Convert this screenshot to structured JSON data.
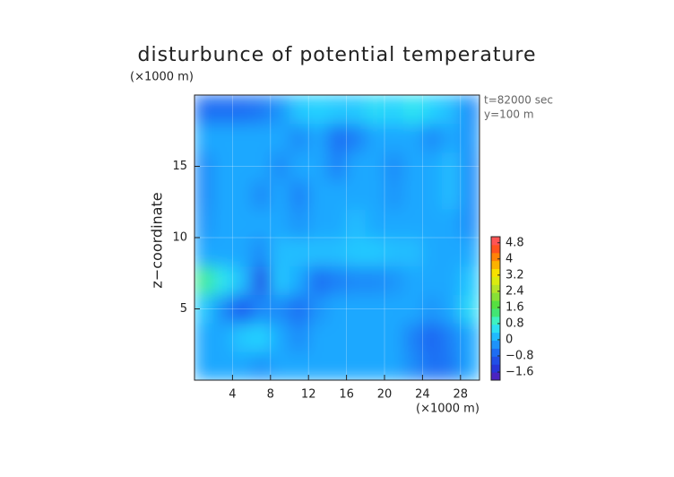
{
  "chart_data": {
    "type": "heatmap",
    "title": "disturbunce of potential temperature",
    "x_unit_label": "(×1000 m)",
    "y_unit_label": "(×1000 m)",
    "y_label": "z−coordinate",
    "annotations": [
      "t=82000 sec",
      "y=100 m"
    ],
    "x": [
      1,
      3,
      5,
      7,
      9,
      11,
      13,
      15,
      17,
      19,
      21,
      23,
      25,
      27,
      29
    ],
    "y": [
      1,
      3,
      5,
      7,
      9,
      11,
      13,
      15,
      17,
      19
    ],
    "z": [
      [
        0,
        0,
        0,
        -0.2,
        0,
        0,
        0,
        0,
        0,
        0,
        0,
        -0.3,
        -0.6,
        -0.5,
        0
      ],
      [
        0,
        0,
        0.3,
        0.4,
        0,
        -0.3,
        0,
        0,
        0,
        0,
        0,
        -0.4,
        -0.7,
        -0.4,
        0
      ],
      [
        0.3,
        -0.3,
        -0.8,
        -0.3,
        -0.3,
        -0.6,
        -0.2,
        0,
        0,
        0,
        0,
        0,
        -0.2,
        0,
        0.5
      ],
      [
        1.2,
        0.6,
        0.2,
        -1.0,
        0.3,
        0,
        -0.6,
        -0.4,
        -0.3,
        -0.3,
        -0.2,
        0,
        0,
        0,
        0.3
      ],
      [
        0,
        0,
        0,
        -0.3,
        0.2,
        0.2,
        0.2,
        0.2,
        0.3,
        0.3,
        0.2,
        0.2,
        0,
        0,
        0
      ],
      [
        -0.2,
        0,
        0,
        0,
        0,
        -0.2,
        0,
        0,
        0.2,
        0,
        0,
        0,
        0,
        0,
        -0.3
      ],
      [
        -0.3,
        0,
        0,
        -0.3,
        0,
        -0.4,
        0,
        0,
        0,
        0,
        -0.2,
        0,
        0,
        0.2,
        -0.3
      ],
      [
        -0.3,
        0,
        0,
        0,
        -0.3,
        0,
        0,
        -0.4,
        0,
        0,
        -0.3,
        0,
        0,
        0.2,
        -0.3
      ],
      [
        0,
        0,
        0,
        0,
        0,
        -0.3,
        0,
        -0.6,
        -0.4,
        0,
        0,
        0,
        -0.3,
        0,
        -0.2
      ],
      [
        -0.6,
        -0.6,
        -0.6,
        -0.5,
        -0.2,
        0.3,
        0.4,
        0.3,
        0.3,
        0.5,
        0.4,
        0.6,
        0.4,
        0.2,
        -0.3
      ]
    ],
    "xlim": [
      0,
      30
    ],
    "ylim": [
      0,
      20
    ],
    "xticks": [
      4,
      8,
      12,
      16,
      20,
      24,
      28
    ],
    "yticks": [
      5,
      10,
      15
    ],
    "grid": true,
    "clim": [
      -2,
      5.1
    ],
    "cticks": [
      {
        "value": -1.6,
        "label": "−1.6"
      },
      {
        "value": -0.8,
        "label": "−0.8"
      },
      0,
      0.8,
      1.6,
      2.4,
      3.2,
      4,
      4.8
    ],
    "colorscale": [
      [
        -2,
        "#6a1fb0"
      ],
      [
        -1.6,
        "#2a2ad0"
      ],
      [
        -0.8,
        "#1e5cf0"
      ],
      [
        0,
        "#1ea8ff"
      ],
      [
        0.4,
        "#22d2ff"
      ],
      [
        0.8,
        "#3cf5e0"
      ],
      [
        1.6,
        "#44e044"
      ],
      [
        2.4,
        "#a8e030"
      ],
      [
        3.2,
        "#f5f000"
      ],
      [
        4,
        "#ff9000"
      ],
      [
        4.8,
        "#ff3030"
      ],
      [
        5.1,
        "#ff9a9a"
      ]
    ]
  }
}
